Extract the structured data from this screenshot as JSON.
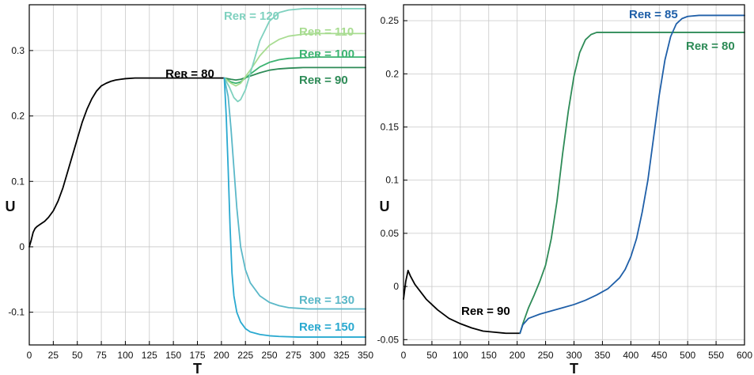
{
  "chart_data": [
    {
      "type": "line",
      "xlabel": "T",
      "ylabel": "U",
      "xlim": [
        0,
        350
      ],
      "ylim": [
        -0.15,
        0.37
      ],
      "xticks": [
        0,
        25,
        50,
        75,
        100,
        125,
        150,
        175,
        200,
        225,
        250,
        275,
        300,
        325,
        350
      ],
      "yticks": [
        -0.1,
        0,
        0.1,
        0.2,
        0.3
      ],
      "ytick_labels": [
        "-0.1",
        "0",
        "0.1",
        "0.2",
        "0.3"
      ],
      "grid": true,
      "series": [
        {
          "name": "Reʀ = 80",
          "label": "Reʀ = 80",
          "color": "#000000",
          "x": [
            0,
            2,
            4,
            6,
            8,
            12,
            16,
            20,
            25,
            30,
            35,
            40,
            45,
            50,
            55,
            60,
            65,
            70,
            75,
            80,
            85,
            90,
            95,
            100,
            110,
            120,
            140,
            160,
            180,
            200,
            203
          ],
          "y": [
            0,
            0.01,
            0.022,
            0.028,
            0.031,
            0.035,
            0.039,
            0.045,
            0.055,
            0.07,
            0.09,
            0.115,
            0.14,
            0.165,
            0.19,
            0.21,
            0.226,
            0.238,
            0.246,
            0.25,
            0.253,
            0.255,
            0.256,
            0.257,
            0.258,
            0.258,
            0.258,
            0.258,
            0.258,
            0.258,
            0.258
          ]
        },
        {
          "name": "Reʀ = 90",
          "label": "Reʀ = 90",
          "color": "#2e8b57",
          "x": [
            203,
            210,
            215,
            220,
            230,
            240,
            250,
            260,
            270,
            285,
            300,
            350
          ],
          "y": [
            0.258,
            0.256,
            0.255,
            0.256,
            0.261,
            0.266,
            0.27,
            0.272,
            0.273,
            0.274,
            0.274,
            0.274
          ]
        },
        {
          "name": "Reʀ = 100",
          "label": "Reʀ = 100",
          "color": "#3cb371",
          "x": [
            203,
            210,
            215,
            220,
            230,
            240,
            250,
            260,
            270,
            285,
            300,
            350
          ],
          "y": [
            0.258,
            0.252,
            0.25,
            0.252,
            0.264,
            0.275,
            0.282,
            0.286,
            0.288,
            0.289,
            0.29,
            0.29
          ]
        },
        {
          "name": "Reʀ = 110",
          "label": "Reʀ = 110",
          "color": "#a8dc91",
          "x": [
            203,
            210,
            215,
            220,
            230,
            240,
            250,
            260,
            270,
            285,
            300,
            350
          ],
          "y": [
            0.258,
            0.25,
            0.246,
            0.25,
            0.27,
            0.292,
            0.308,
            0.317,
            0.322,
            0.325,
            0.326,
            0.326
          ]
        },
        {
          "name": "Reʀ = 120",
          "label": "Reʀ = 120",
          "color": "#7fd1bf",
          "x": [
            203,
            208,
            213,
            217,
            220,
            225,
            230,
            240,
            250,
            260,
            270,
            285,
            300,
            350
          ],
          "y": [
            0.258,
            0.245,
            0.228,
            0.222,
            0.225,
            0.24,
            0.265,
            0.315,
            0.345,
            0.358,
            0.362,
            0.364,
            0.364,
            0.364
          ]
        },
        {
          "name": "Reʀ = 130",
          "label": "Reʀ = 130",
          "color": "#5bb8c8",
          "x": [
            203,
            207,
            210,
            213,
            216,
            220,
            225,
            230,
            240,
            250,
            260,
            270,
            280,
            290,
            300,
            320,
            350
          ],
          "y": [
            0.258,
            0.23,
            0.18,
            0.12,
            0.06,
            0.0,
            -0.035,
            -0.055,
            -0.075,
            -0.085,
            -0.09,
            -0.093,
            -0.094,
            -0.095,
            -0.095,
            -0.095,
            -0.095
          ]
        },
        {
          "name": "Reʀ = 150",
          "label": "Reʀ = 150",
          "color": "#29a9d0",
          "x": [
            203,
            205,
            207,
            209,
            211,
            213,
            216,
            220,
            225,
            230,
            240,
            250,
            260,
            280,
            300,
            350
          ],
          "y": [
            0.258,
            0.2,
            0.12,
            0.03,
            -0.04,
            -0.075,
            -0.1,
            -0.115,
            -0.125,
            -0.13,
            -0.134,
            -0.136,
            -0.137,
            -0.138,
            -0.138,
            -0.138
          ]
        }
      ]
    },
    {
      "type": "line",
      "xlabel": "T",
      "ylabel": "U",
      "xlim": [
        0,
        600
      ],
      "ylim": [
        -0.055,
        0.265
      ],
      "xticks": [
        0,
        50,
        100,
        150,
        200,
        250,
        300,
        350,
        400,
        450,
        500,
        550,
        600
      ],
      "yticks": [
        -0.05,
        0,
        0.05,
        0.1,
        0.15,
        0.2,
        0.25
      ],
      "ytick_labels": [
        "-0.05",
        "0",
        "0.05",
        "0.1",
        "0.15",
        "0.2",
        "0.25"
      ],
      "grid": true,
      "series": [
        {
          "name": "Reʀ = 90",
          "label": "Reʀ = 90",
          "color": "#000000",
          "x": [
            0,
            4,
            8,
            12,
            20,
            30,
            40,
            60,
            80,
            100,
            120,
            140,
            160,
            180,
            200,
            205
          ],
          "y": [
            -0.012,
            0.005,
            0.015,
            0.01,
            0.002,
            -0.005,
            -0.012,
            -0.022,
            -0.03,
            -0.035,
            -0.039,
            -0.042,
            -0.043,
            -0.044,
            -0.044,
            -0.044
          ]
        },
        {
          "name": "Reʀ = 80",
          "label": "Reʀ = 80",
          "color": "#2e8b57",
          "x": [
            205,
            210,
            220,
            230,
            240,
            250,
            260,
            270,
            280,
            290,
            300,
            310,
            320,
            330,
            340,
            350,
            370,
            400,
            600
          ],
          "y": [
            -0.044,
            -0.035,
            -0.02,
            -0.008,
            0.005,
            0.02,
            0.045,
            0.08,
            0.125,
            0.165,
            0.198,
            0.22,
            0.232,
            0.237,
            0.239,
            0.239,
            0.239,
            0.239,
            0.239
          ]
        },
        {
          "name": "Reʀ = 85",
          "label": "Reʀ = 85",
          "color": "#1f5fa8",
          "x": [
            205,
            210,
            220,
            240,
            260,
            280,
            300,
            320,
            340,
            360,
            380,
            390,
            400,
            410,
            420,
            430,
            440,
            450,
            460,
            470,
            480,
            490,
            500,
            520,
            550,
            600
          ],
          "y": [
            -0.044,
            -0.036,
            -0.03,
            -0.026,
            -0.023,
            -0.02,
            -0.017,
            -0.013,
            -0.008,
            -0.002,
            0.008,
            0.016,
            0.028,
            0.045,
            0.07,
            0.1,
            0.14,
            0.18,
            0.213,
            0.235,
            0.247,
            0.252,
            0.254,
            0.255,
            0.255,
            0.255
          ]
        }
      ]
    }
  ]
}
